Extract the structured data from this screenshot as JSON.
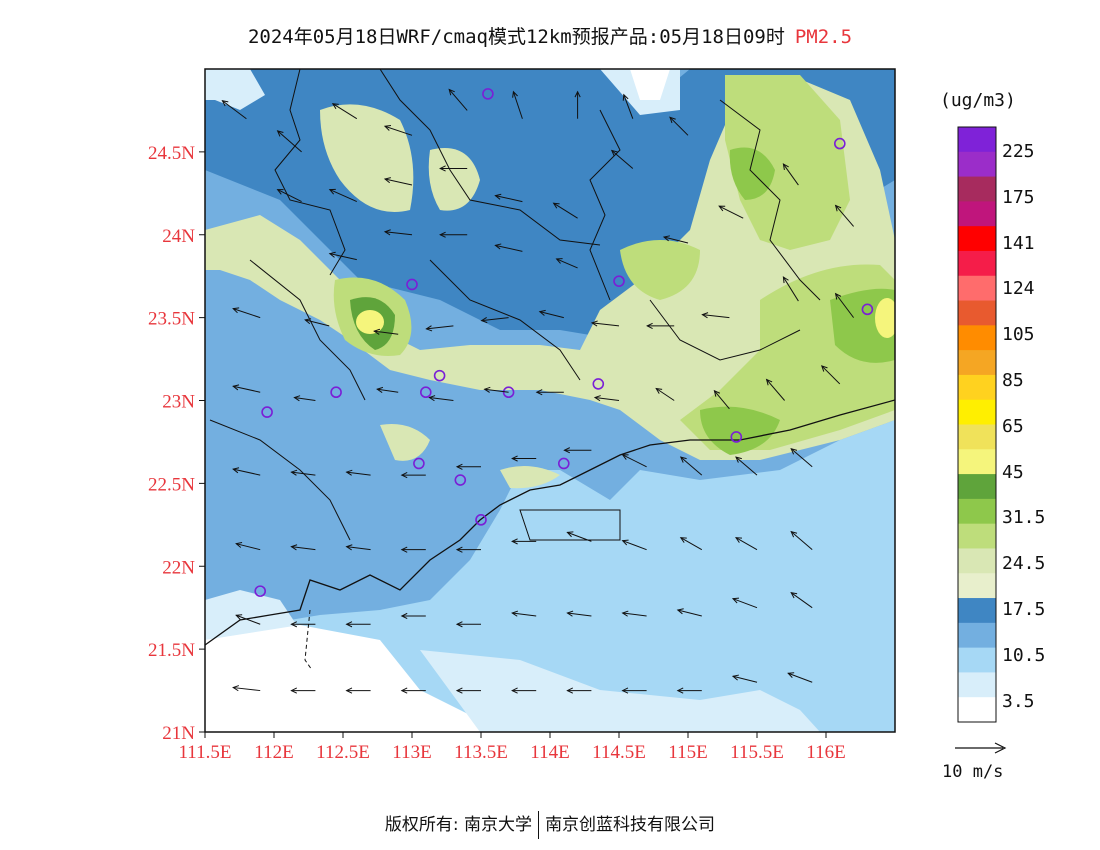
{
  "title": {
    "main": "2024年05月18日WRF/cmaq模式12km预报产品:05月18日09时",
    "species": "PM2.5"
  },
  "map": {
    "lon_labels": [
      "111.5E",
      "112E",
      "112.5E",
      "113E",
      "113.5E",
      "114E",
      "114.5E",
      "115E",
      "115.5E",
      "116E"
    ],
    "lat_labels": [
      "21N",
      "21.5N",
      "22N",
      "22.5N",
      "23N",
      "23.5N",
      "24N",
      "24.5N"
    ],
    "lon_range": [
      111.5,
      116.5
    ],
    "lat_range": [
      21,
      25
    ],
    "background_colors": {
      "sea": "#a6d8f5",
      "low_land": "#73afe0",
      "mid_land": "#3f86c3",
      "light_green": "#d9e7b4",
      "green": "#bedd7b",
      "dark_green": "#8ec84b",
      "deep_green": "#5fa43b",
      "yellow": "#f5f57c"
    },
    "monitoring_sites": [
      [
        113.55,
        24.85
      ],
      [
        116.1,
        24.55
      ],
      [
        113.0,
        23.7
      ],
      [
        114.5,
        23.72
      ],
      [
        116.3,
        23.55
      ],
      [
        113.2,
        23.15
      ],
      [
        112.45,
        23.05
      ],
      [
        113.1,
        23.05
      ],
      [
        113.7,
        23.05
      ],
      [
        114.35,
        23.1
      ],
      [
        111.95,
        22.93
      ],
      [
        115.35,
        22.78
      ],
      [
        113.05,
        22.62
      ],
      [
        114.1,
        22.62
      ],
      [
        113.35,
        22.52
      ],
      [
        113.5,
        22.28
      ],
      [
        111.9,
        21.85
      ]
    ]
  },
  "legend": {
    "unit": "(ug/m3)",
    "labels": [
      "225",
      "175",
      "141",
      "124",
      "105",
      "85",
      "65",
      "45",
      "31.5",
      "24.5",
      "17.5",
      "10.5",
      "3.5"
    ],
    "colors": [
      "#7f22d8",
      "#9b2dc9",
      "#a72b5e",
      "#c0157c",
      "#ff0000",
      "#f51d49",
      "#ff6c6c",
      "#e85a2f",
      "#ff8c00",
      "#f5a623",
      "#ffd21f",
      "#ffef00",
      "#f0e25a",
      "#f5f57c",
      "#5fa43b",
      "#8ec84b",
      "#bedd7b",
      "#d9e7b4",
      "#e8efcc",
      "#3f86c3",
      "#73afe0",
      "#a6d8f5",
      "#d8eefa",
      "#ffffff"
    ]
  },
  "wind": {
    "reference_label": "10 m/s",
    "vectors": [
      [
        111.8,
        24.7,
        -0.8,
        0.6
      ],
      [
        112.2,
        24.5,
        -0.8,
        0.7
      ],
      [
        112.6,
        24.7,
        -0.8,
        0.5
      ],
      [
        113.0,
        24.6,
        -0.9,
        0.3
      ],
      [
        113.4,
        24.75,
        -0.6,
        0.7
      ],
      [
        113.8,
        24.7,
        -0.3,
        0.9
      ],
      [
        114.2,
        24.7,
        0.0,
        0.9
      ],
      [
        114.6,
        24.7,
        -0.3,
        0.8
      ],
      [
        112.2,
        24.2,
        -0.8,
        0.4
      ],
      [
        112.6,
        24.2,
        -0.9,
        0.4
      ],
      [
        113.0,
        24.3,
        -0.9,
        0.2
      ],
      [
        113.4,
        24.4,
        -0.9,
        0.0
      ],
      [
        113.8,
        24.2,
        -0.9,
        0.2
      ],
      [
        114.2,
        24.1,
        -0.8,
        0.5
      ],
      [
        114.6,
        24.4,
        -0.7,
        0.6
      ],
      [
        115.0,
        24.6,
        -0.6,
        0.6
      ],
      [
        112.6,
        23.85,
        -0.9,
        0.2
      ],
      [
        113.0,
        24.0,
        -0.9,
        0.1
      ],
      [
        113.4,
        24.0,
        -0.9,
        0.0
      ],
      [
        113.8,
        23.9,
        -0.9,
        0.2
      ],
      [
        114.2,
        23.8,
        -0.7,
        0.3
      ],
      [
        115.0,
        23.95,
        -0.8,
        0.2
      ],
      [
        115.4,
        24.1,
        -0.8,
        0.4
      ],
      [
        115.8,
        24.3,
        -0.5,
        0.7
      ],
      [
        116.2,
        24.05,
        -0.6,
        0.7
      ],
      [
        111.9,
        23.5,
        -0.9,
        0.3
      ],
      [
        112.4,
        23.45,
        -0.8,
        0.2
      ],
      [
        112.9,
        23.4,
        -0.8,
        0.1
      ],
      [
        113.3,
        23.45,
        -0.9,
        -0.1
      ],
      [
        113.7,
        23.5,
        -0.9,
        -0.1
      ],
      [
        114.1,
        23.5,
        -0.8,
        0.2
      ],
      [
        114.5,
        23.45,
        -0.9,
        0.1
      ],
      [
        114.9,
        23.45,
        -0.9,
        0.0
      ],
      [
        115.3,
        23.5,
        -0.9,
        0.1
      ],
      [
        115.8,
        23.6,
        -0.5,
        0.8
      ],
      [
        116.2,
        23.5,
        -0.6,
        0.8
      ],
      [
        111.9,
        23.05,
        -0.9,
        0.2
      ],
      [
        112.3,
        23.0,
        -0.7,
        0.1
      ],
      [
        112.9,
        23.05,
        -0.7,
        0.1
      ],
      [
        113.3,
        23.0,
        -0.8,
        0.1
      ],
      [
        113.7,
        23.05,
        -0.8,
        0.1
      ],
      [
        114.1,
        23.05,
        -0.9,
        0.0
      ],
      [
        114.5,
        23.0,
        -0.8,
        0.1
      ],
      [
        114.9,
        23.0,
        -0.6,
        0.4
      ],
      [
        115.3,
        22.95,
        -0.5,
        0.6
      ],
      [
        115.7,
        23.0,
        -0.6,
        0.7
      ],
      [
        116.1,
        23.1,
        -0.6,
        0.6
      ],
      [
        111.9,
        22.55,
        -0.9,
        0.2
      ],
      [
        112.3,
        22.55,
        -0.8,
        0.1
      ],
      [
        112.7,
        22.55,
        -0.8,
        0.1
      ],
      [
        113.1,
        22.55,
        -0.8,
        0.0
      ],
      [
        113.5,
        22.6,
        -0.8,
        0.0
      ],
      [
        113.9,
        22.65,
        -0.8,
        0.0
      ],
      [
        114.3,
        22.7,
        -0.9,
        0.0
      ],
      [
        114.7,
        22.6,
        -0.8,
        0.4
      ],
      [
        115.1,
        22.55,
        -0.7,
        0.6
      ],
      [
        115.5,
        22.55,
        -0.7,
        0.6
      ],
      [
        115.9,
        22.6,
        -0.7,
        0.6
      ],
      [
        111.9,
        22.1,
        -0.8,
        0.2
      ],
      [
        112.3,
        22.1,
        -0.8,
        0.1
      ],
      [
        112.7,
        22.1,
        -0.8,
        0.1
      ],
      [
        113.1,
        22.1,
        -0.8,
        0.0
      ],
      [
        113.5,
        22.1,
        -0.8,
        0.0
      ],
      [
        113.9,
        22.15,
        -0.8,
        0.0
      ],
      [
        114.3,
        22.15,
        -0.8,
        0.3
      ],
      [
        114.7,
        22.1,
        -0.8,
        0.3
      ],
      [
        115.1,
        22.1,
        -0.7,
        0.4
      ],
      [
        115.5,
        22.1,
        -0.7,
        0.4
      ],
      [
        115.9,
        22.1,
        -0.7,
        0.6
      ],
      [
        111.9,
        21.65,
        -0.8,
        0.3
      ],
      [
        112.3,
        21.65,
        -0.8,
        0.0
      ],
      [
        112.7,
        21.65,
        -0.8,
        0.0
      ],
      [
        113.1,
        21.7,
        -0.8,
        0.0
      ],
      [
        113.5,
        21.65,
        -0.8,
        0.0
      ],
      [
        113.9,
        21.7,
        -0.8,
        0.1
      ],
      [
        114.3,
        21.7,
        -0.8,
        0.1
      ],
      [
        114.7,
        21.7,
        -0.8,
        0.1
      ],
      [
        115.1,
        21.7,
        -0.8,
        0.2
      ],
      [
        115.5,
        21.75,
        -0.8,
        0.3
      ],
      [
        115.9,
        21.75,
        -0.7,
        0.5
      ],
      [
        111.9,
        21.25,
        -0.9,
        0.1
      ],
      [
        112.3,
        21.25,
        -0.8,
        0.0
      ],
      [
        112.7,
        21.25,
        -0.8,
        0.0
      ],
      [
        113.1,
        21.25,
        -0.8,
        0.0
      ],
      [
        113.5,
        21.25,
        -0.8,
        0.0
      ],
      [
        113.9,
        21.25,
        -0.8,
        0.0
      ],
      [
        114.3,
        21.25,
        -0.8,
        0.0
      ],
      [
        114.7,
        21.25,
        -0.8,
        0.0
      ],
      [
        115.1,
        21.25,
        -0.8,
        0.0
      ],
      [
        115.5,
        21.3,
        -0.8,
        0.2
      ],
      [
        115.9,
        21.3,
        -0.8,
        0.3
      ]
    ]
  },
  "footer": {
    "left": "版权所有: 南京大学",
    "right": "南京创蓝科技有限公司"
  }
}
